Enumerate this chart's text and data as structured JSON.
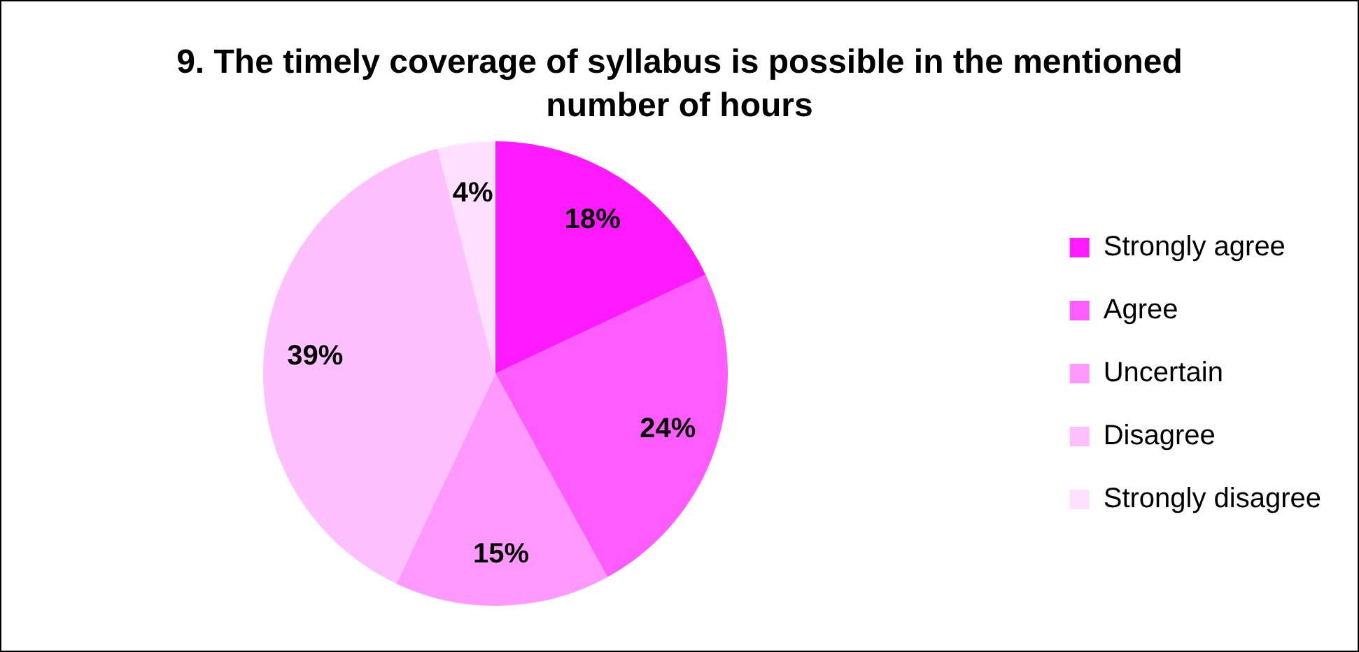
{
  "chart_data": {
    "type": "pie",
    "title": "9. The timely coverage of syllabus is possible in the mentioned number of hours",
    "categories": [
      "Strongly agree",
      "Agree",
      "Uncertain",
      "Disagree",
      "Strongly disagree"
    ],
    "values": [
      18,
      24,
      15,
      39,
      4
    ],
    "colors": [
      "#ff1aff",
      "#ff5cff",
      "#ff99ff",
      "#ffc0ff",
      "#ffe0ff"
    ],
    "value_labels": [
      "18%",
      "24%",
      "15%",
      "39%",
      "4%"
    ],
    "legend": "right"
  }
}
